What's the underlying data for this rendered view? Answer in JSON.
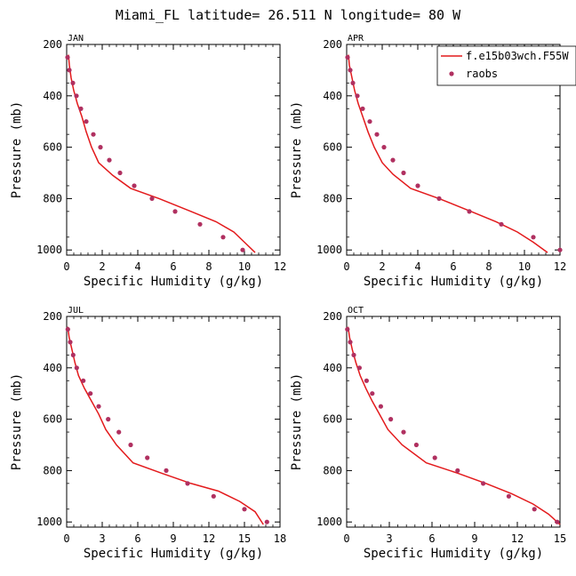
{
  "figure": {
    "title": "Miami_FL  latitude= 26.511 N longitude= 80 W",
    "colors": {
      "model": "#e31a1c",
      "raobs": "#b03060",
      "axes": "#000000"
    },
    "legend": {
      "placement": "top-right",
      "model_label": "f.e15b03wch.F55W",
      "obs_label": "raobs"
    }
  },
  "chart_data": [
    {
      "type": "line",
      "title": "JAN",
      "xlabel": "Specific Humidity (g/kg)",
      "ylabel": "Pressure (mb)",
      "xlim": [
        0,
        12
      ],
      "ylim": [
        1020,
        200
      ],
      "xticks": [
        0,
        2,
        4,
        6,
        8,
        10,
        12
      ],
      "yticks": [
        200,
        400,
        600,
        800,
        1000
      ],
      "series": [
        {
          "name": "f.e15b03wch.F55W",
          "kind": "line",
          "points": [
            [
              0.1,
              240
            ],
            [
              0.15,
              280
            ],
            [
              0.25,
              330
            ],
            [
              0.4,
              380
            ],
            [
              0.6,
              430
            ],
            [
              0.85,
              480
            ],
            [
              1.1,
              540
            ],
            [
              1.4,
              600
            ],
            [
              1.8,
              660
            ],
            [
              2.6,
              710
            ],
            [
              3.6,
              760
            ],
            [
              5.2,
              800
            ],
            [
              7.0,
              850
            ],
            [
              8.4,
              890
            ],
            [
              9.4,
              930
            ],
            [
              10.0,
              970
            ],
            [
              10.6,
              1010
            ]
          ]
        },
        {
          "name": "raobs",
          "kind": "scatter",
          "points": [
            [
              0.05,
              250
            ],
            [
              0.15,
              300
            ],
            [
              0.35,
              350
            ],
            [
              0.55,
              400
            ],
            [
              0.8,
              450
            ],
            [
              1.1,
              500
            ],
            [
              1.5,
              550
            ],
            [
              1.9,
              600
            ],
            [
              2.4,
              650
            ],
            [
              3.0,
              700
            ],
            [
              3.8,
              750
            ],
            [
              4.8,
              800
            ],
            [
              6.1,
              850
            ],
            [
              7.5,
              900
            ],
            [
              8.8,
              950
            ],
            [
              9.9,
              1000
            ]
          ]
        }
      ]
    },
    {
      "type": "line",
      "title": "APR",
      "xlabel": "Specific Humidity (g/kg)",
      "ylabel": "Pressure (mb)",
      "xlim": [
        0,
        12
      ],
      "ylim": [
        1020,
        200
      ],
      "xticks": [
        0,
        2,
        4,
        6,
        8,
        10,
        12
      ],
      "yticks": [
        200,
        400,
        600,
        800,
        1000
      ],
      "series": [
        {
          "name": "f.e15b03wch.F55W",
          "kind": "line",
          "points": [
            [
              0.1,
              240
            ],
            [
              0.15,
              280
            ],
            [
              0.3,
              330
            ],
            [
              0.45,
              380
            ],
            [
              0.65,
              430
            ],
            [
              0.9,
              480
            ],
            [
              1.2,
              540
            ],
            [
              1.55,
              600
            ],
            [
              2.0,
              660
            ],
            [
              2.6,
              705
            ],
            [
              3.6,
              760
            ],
            [
              5.2,
              800
            ],
            [
              7.0,
              850
            ],
            [
              8.4,
              890
            ],
            [
              9.6,
              930
            ],
            [
              10.5,
              970
            ],
            [
              11.3,
              1010
            ]
          ]
        },
        {
          "name": "raobs",
          "kind": "scatter",
          "points": [
            [
              0.05,
              250
            ],
            [
              0.2,
              300
            ],
            [
              0.35,
              350
            ],
            [
              0.6,
              400
            ],
            [
              0.9,
              450
            ],
            [
              1.3,
              500
            ],
            [
              1.7,
              550
            ],
            [
              2.1,
              600
            ],
            [
              2.6,
              650
            ],
            [
              3.2,
              700
            ],
            [
              4.0,
              750
            ],
            [
              5.2,
              800
            ],
            [
              6.9,
              850
            ],
            [
              8.7,
              900
            ],
            [
              10.5,
              950
            ],
            [
              12.0,
              1000
            ]
          ]
        }
      ]
    },
    {
      "type": "line",
      "title": "JUL",
      "xlabel": "Specific Humidity (g/kg)",
      "ylabel": "Pressure (mb)",
      "xlim": [
        0,
        18
      ],
      "ylim": [
        1020,
        200
      ],
      "xticks": [
        0,
        3,
        6,
        9,
        12,
        15,
        18
      ],
      "yticks": [
        200,
        400,
        600,
        800,
        1000
      ],
      "series": [
        {
          "name": "f.e15b03wch.F55W",
          "kind": "line",
          "points": [
            [
              0.1,
              240
            ],
            [
              0.2,
              280
            ],
            [
              0.45,
              330
            ],
            [
              0.7,
              380
            ],
            [
              1.0,
              430
            ],
            [
              1.5,
              480
            ],
            [
              2.1,
              530
            ],
            [
              2.7,
              580
            ],
            [
              3.3,
              640
            ],
            [
              4.2,
              700
            ],
            [
              5.6,
              770
            ],
            [
              8.0,
              810
            ],
            [
              10.5,
              850
            ],
            [
              12.8,
              880
            ],
            [
              14.6,
              920
            ],
            [
              15.9,
              960
            ],
            [
              16.6,
              1010
            ]
          ]
        },
        {
          "name": "raobs",
          "kind": "scatter",
          "points": [
            [
              0.1,
              250
            ],
            [
              0.3,
              300
            ],
            [
              0.55,
              350
            ],
            [
              0.85,
              400
            ],
            [
              1.4,
              450
            ],
            [
              2.0,
              500
            ],
            [
              2.7,
              550
            ],
            [
              3.5,
              600
            ],
            [
              4.4,
              650
            ],
            [
              5.4,
              700
            ],
            [
              6.8,
              750
            ],
            [
              8.4,
              800
            ],
            [
              10.2,
              850
            ],
            [
              12.4,
              900
            ],
            [
              15.0,
              950
            ],
            [
              16.9,
              1000
            ]
          ]
        }
      ]
    },
    {
      "type": "line",
      "title": "OCT",
      "xlabel": "Specific Humidity (g/kg)",
      "ylabel": "Pressure (mb)",
      "xlim": [
        0,
        15
      ],
      "ylim": [
        1020,
        200
      ],
      "xticks": [
        0,
        3,
        6,
        9,
        12,
        15
      ],
      "yticks": [
        200,
        400,
        600,
        800,
        1000
      ],
      "series": [
        {
          "name": "f.e15b03wch.F55W",
          "kind": "line",
          "points": [
            [
              0.1,
              240
            ],
            [
              0.2,
              280
            ],
            [
              0.4,
              330
            ],
            [
              0.65,
              380
            ],
            [
              0.95,
              430
            ],
            [
              1.35,
              480
            ],
            [
              1.8,
              530
            ],
            [
              2.3,
              580
            ],
            [
              2.9,
              640
            ],
            [
              3.9,
              700
            ],
            [
              5.6,
              770
            ],
            [
              7.8,
              810
            ],
            [
              9.8,
              850
            ],
            [
              11.6,
              890
            ],
            [
              13.1,
              930
            ],
            [
              14.2,
              970
            ],
            [
              15.0,
              1010
            ]
          ]
        },
        {
          "name": "raobs",
          "kind": "scatter",
          "points": [
            [
              0.05,
              250
            ],
            [
              0.25,
              300
            ],
            [
              0.5,
              350
            ],
            [
              0.9,
              400
            ],
            [
              1.4,
              450
            ],
            [
              1.8,
              500
            ],
            [
              2.4,
              550
            ],
            [
              3.1,
              600
            ],
            [
              4.0,
              650
            ],
            [
              4.9,
              700
            ],
            [
              6.2,
              750
            ],
            [
              7.8,
              800
            ],
            [
              9.6,
              850
            ],
            [
              11.4,
              900
            ],
            [
              13.2,
              950
            ],
            [
              14.8,
              1000
            ]
          ]
        }
      ]
    }
  ]
}
